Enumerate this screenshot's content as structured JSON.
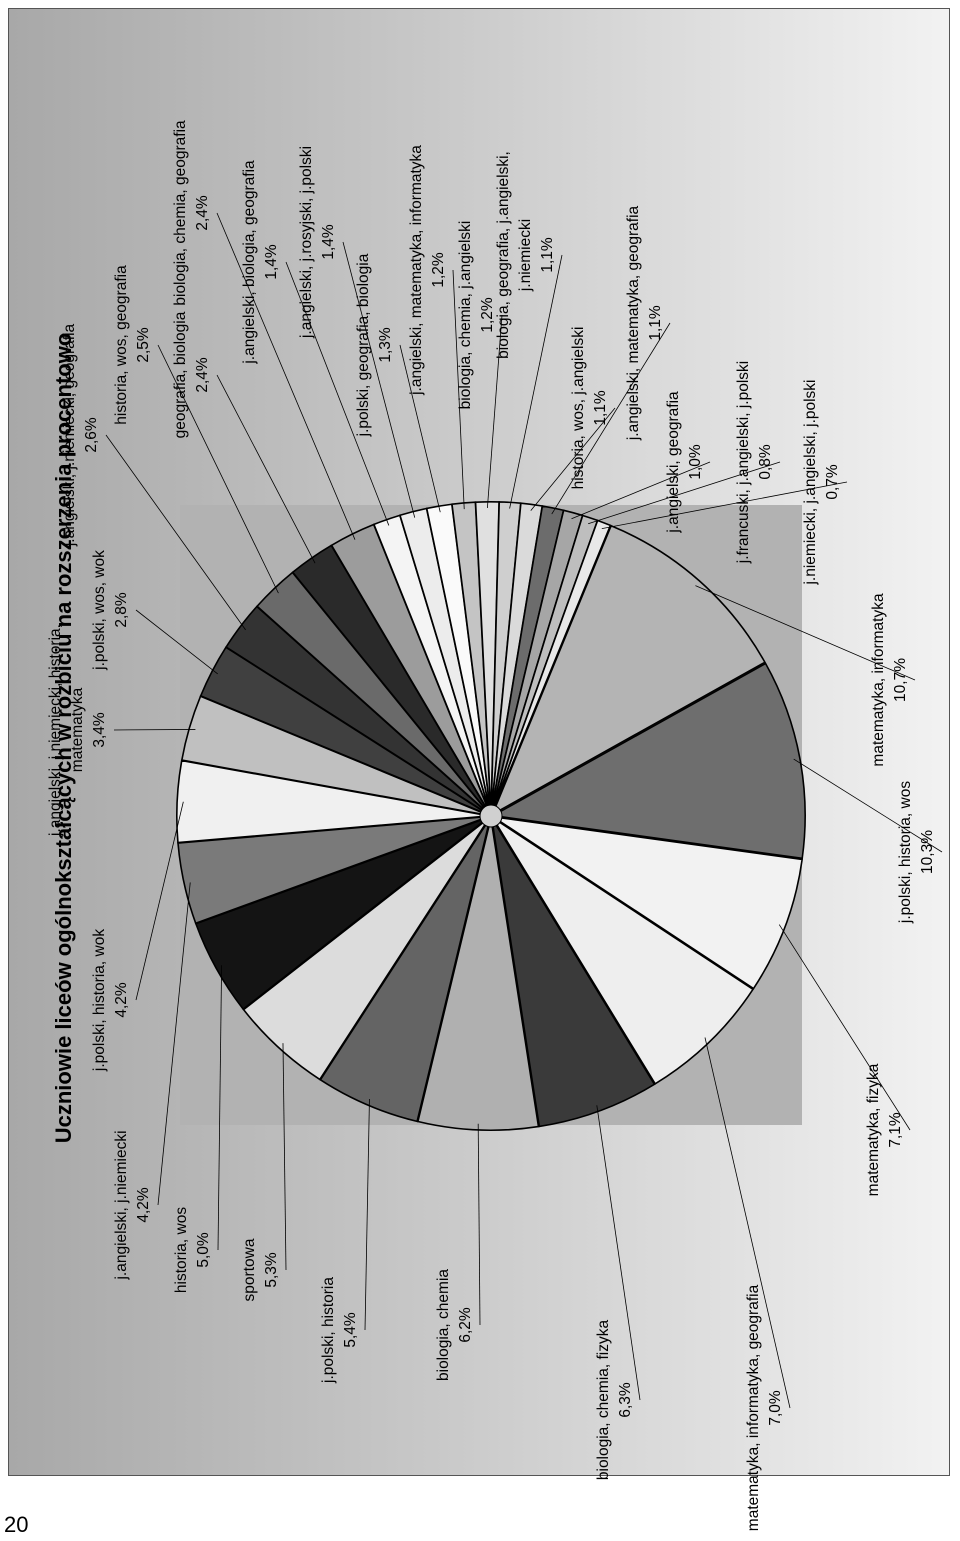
{
  "page_number": "20",
  "chart_data": {
    "type": "pie",
    "title": "Uczniowie liceów ogólnokształcących w rozbiciu na rozszerzenia procentowo",
    "slices": [
      {
        "label": "matematyka, informatyka",
        "value": 10.7,
        "pct": "10,7%",
        "color": "#b4b4b4"
      },
      {
        "label": "j.polski, historia, wos",
        "value": 10.3,
        "pct": "10,3%",
        "color": "#6e6e6e"
      },
      {
        "label": "matematyka, fizyka",
        "value": 7.1,
        "pct": "7,1%",
        "color": "#f2f2f2"
      },
      {
        "label": "matematyka, informatyka, geografia",
        "value": 7.0,
        "pct": "7,0%",
        "color": "#eeeeee"
      },
      {
        "label": "biologia, chemia, fizyka",
        "value": 6.3,
        "pct": "6,3%",
        "color": "#3a3a3a"
      },
      {
        "label": "biologia, chemia",
        "value": 6.2,
        "pct": "6,2%",
        "color": "#b0b0b0"
      },
      {
        "label": "j.polski, historia",
        "value": 5.4,
        "pct": "5,4%",
        "color": "#646464"
      },
      {
        "label": "sportowa",
        "value": 5.3,
        "pct": "5,3%",
        "color": "#dcdcdc"
      },
      {
        "label": "historia, wos",
        "value": 5.0,
        "pct": "5,0%",
        "color": "#141414"
      },
      {
        "label": "j.angielski, j.niemiecki",
        "value": 4.2,
        "pct": "4,2%",
        "color": "#7a7a7a"
      },
      {
        "label": "j.polski, historia, wok",
        "value": 4.2,
        "pct": "4,2%",
        "color": "#f0f0f0"
      },
      {
        "label": "j.angielski, j.niemiecki, historia, matematyka",
        "value": 3.4,
        "pct": "3,4%",
        "color": "#c0c0c0"
      },
      {
        "label": "j.polski, wos, wok",
        "value": 2.8,
        "pct": "2,8%",
        "color": "#404040"
      },
      {
        "label": "j.angielski, j.niemiecki, geografia",
        "value": 2.6,
        "pct": "2,6%",
        "color": "#333333"
      },
      {
        "label": "historia, wos, geografia",
        "value": 2.5,
        "pct": "2,5%",
        "color": "#6a6a6a"
      },
      {
        "label": "geografia, biologia",
        "value": 2.4,
        "pct": "2,4%",
        "color": "#2a2a2a"
      },
      {
        "label": "biologia, chemia, geografia",
        "value": 2.4,
        "pct": "2,4%",
        "color": "#9c9c9c"
      },
      {
        "label": "j.angielski, biologia, geografia",
        "value": 1.4,
        "pct": "1,4%",
        "color": "#f4f4f4"
      },
      {
        "label": "j.angielski, j.rosyjski, j.polski",
        "value": 1.4,
        "pct": "1,4%",
        "color": "#ececec"
      },
      {
        "label": "j.polski, geografia, biologia",
        "value": 1.3,
        "pct": "1,3%",
        "color": "#fafafa"
      },
      {
        "label": "j.angielski, matematyka, informatyka",
        "value": 1.2,
        "pct": "1,2%",
        "color": "#c4c4c4"
      },
      {
        "label": "biologia, chemia, j.angielski",
        "value": 1.2,
        "pct": "1,2%",
        "color": "#e0e0e0"
      },
      {
        "label": "biologia, geografia, j.angielski, j.niemiecki",
        "value": 1.1,
        "pct": "1,1%",
        "color": "#cfcfcf"
      },
      {
        "label": "historia, wos, j.angielski",
        "value": 1.1,
        "pct": "1,1%",
        "color": "#dadada"
      },
      {
        "label": "j.angielski, matematyka, geografia",
        "value": 1.1,
        "pct": "1,1%",
        "color": "#6c6c6c"
      },
      {
        "label": "j.angielski, geografia",
        "value": 1.0,
        "pct": "1,0%",
        "color": "#a6a6a6"
      },
      {
        "label": "j.francuski, j.angielski, j.polski",
        "value": 0.8,
        "pct": "0,8%",
        "color": "#bebebe"
      },
      {
        "label": "j.niemiecki, j.angielski, j.polski",
        "value": 0.7,
        "pct": "0,7%",
        "color": "#e8e8e8"
      }
    ]
  }
}
